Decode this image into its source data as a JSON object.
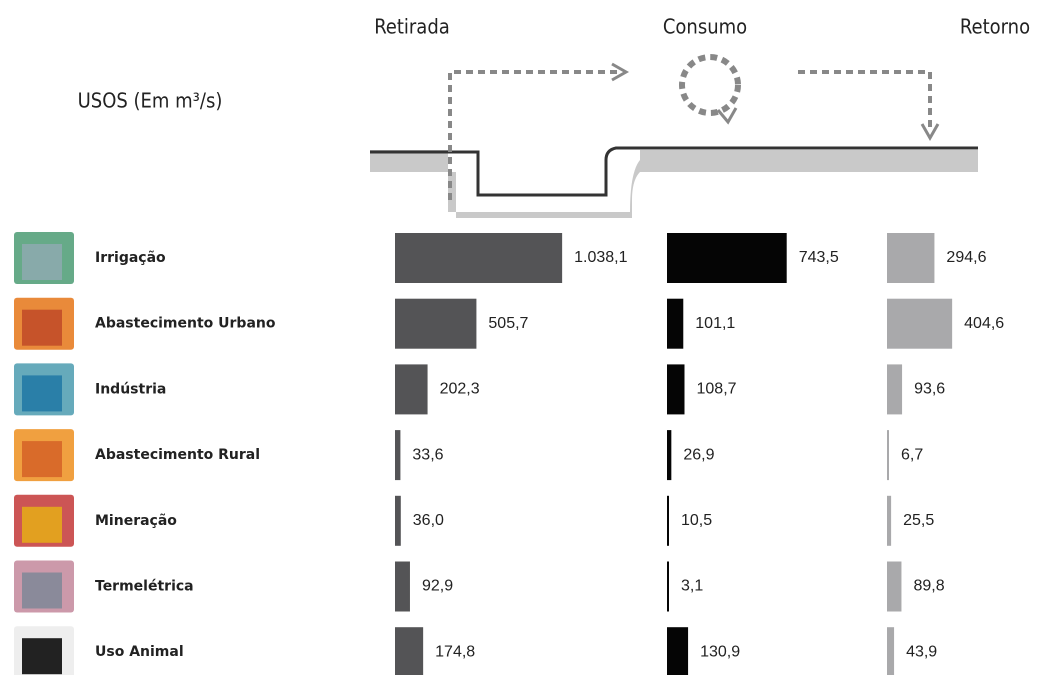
{
  "chart_data": {
    "type": "bar",
    "title": "USOS (Em m³/s)",
    "categories": [
      "Irrigação",
      "Abastecimento Urbano",
      "Indústria",
      "Abastecimento Rural",
      "Mineração",
      "Termelétrica",
      "Uso Animal"
    ],
    "series": [
      {
        "name": "Retirada",
        "color": "#545456",
        "values": [
          1038.1,
          505.7,
          202.3,
          33.6,
          36.0,
          92.9,
          174.8
        ],
        "value_labels": [
          "1.038,1",
          "505,7",
          "202,3",
          "33,6",
          "36,0",
          "92,9",
          "174,8"
        ]
      },
      {
        "name": "Consumo",
        "color": "#050505",
        "values": [
          743.5,
          101.1,
          108.7,
          26.9,
          10.5,
          3.1,
          130.9
        ],
        "value_labels": [
          "743,5",
          "101,1",
          "108,7",
          "26,9",
          "10,5",
          "3,1",
          "130,9"
        ]
      },
      {
        "name": "Retorno",
        "color": "#a9a9ab",
        "values": [
          294.6,
          404.6,
          93.6,
          6.7,
          25.5,
          89.8,
          43.9
        ],
        "value_labels": [
          "294,6",
          "404,6",
          "93,6",
          "6,7",
          "25,5",
          "89,8",
          "43,9"
        ]
      }
    ]
  }
}
